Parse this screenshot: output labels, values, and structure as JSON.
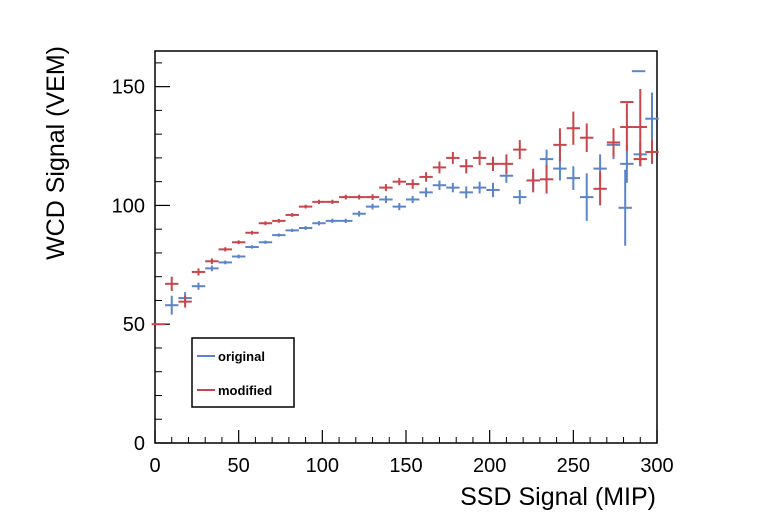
{
  "chart_data": {
    "type": "scatter",
    "xlabel": "SSD Signal (MIP)",
    "ylabel": "WCD Signal (VEM)",
    "xlim": [
      0,
      300
    ],
    "ylim": [
      0,
      165
    ],
    "xticks": [
      0,
      50,
      100,
      150,
      200,
      250,
      300
    ],
    "yticks": [
      0,
      50,
      100,
      150
    ],
    "legend_position": "bottom-left",
    "series": [
      {
        "name": "original",
        "color": "#5b85c8",
        "points": [
          {
            "x": 10,
            "y": 58,
            "yerr": 4
          },
          {
            "x": 18,
            "y": 61,
            "yerr": 2.5
          },
          {
            "x": 26,
            "y": 66,
            "yerr": 1.5
          },
          {
            "x": 34,
            "y": 73.5,
            "yerr": 1.2
          },
          {
            "x": 42,
            "y": 76,
            "yerr": 0.8
          },
          {
            "x": 50,
            "y": 78.5,
            "yerr": 0.8
          },
          {
            "x": 58,
            "y": 82.5,
            "yerr": 0.7
          },
          {
            "x": 66,
            "y": 84.5,
            "yerr": 0.7
          },
          {
            "x": 74,
            "y": 87.5,
            "yerr": 0.7
          },
          {
            "x": 82,
            "y": 89.5,
            "yerr": 0.7
          },
          {
            "x": 90,
            "y": 90.5,
            "yerr": 0.8
          },
          {
            "x": 98,
            "y": 92.5,
            "yerr": 0.9
          },
          {
            "x": 106,
            "y": 93.5,
            "yerr": 0.9
          },
          {
            "x": 114,
            "y": 93.5,
            "yerr": 0.9
          },
          {
            "x": 122,
            "y": 96.5,
            "yerr": 1.2
          },
          {
            "x": 130,
            "y": 99.5,
            "yerr": 1.2
          },
          {
            "x": 138,
            "y": 102.5,
            "yerr": 1.5
          },
          {
            "x": 146,
            "y": 99.5,
            "yerr": 1.5
          },
          {
            "x": 154,
            "y": 102.5,
            "yerr": 1.5
          },
          {
            "x": 162,
            "y": 105.5,
            "yerr": 2
          },
          {
            "x": 170,
            "y": 108.5,
            "yerr": 2
          },
          {
            "x": 178,
            "y": 107.5,
            "yerr": 2
          },
          {
            "x": 186,
            "y": 105.5,
            "yerr": 2.5
          },
          {
            "x": 194,
            "y": 107.5,
            "yerr": 2.5
          },
          {
            "x": 202,
            "y": 106.5,
            "yerr": 3
          },
          {
            "x": 210,
            "y": 112.5,
            "yerr": 3
          },
          {
            "x": 218,
            "y": 103.5,
            "yerr": 3
          },
          {
            "x": 226,
            "y": 110.5,
            "yerr": 4
          },
          {
            "x": 234,
            "y": 119.5,
            "yerr": 4
          },
          {
            "x": 242,
            "y": 115.5,
            "yerr": 5
          },
          {
            "x": 250,
            "y": 111.5,
            "yerr": 5
          },
          {
            "x": 258,
            "y": 103.5,
            "yerr": 10
          },
          {
            "x": 266,
            "y": 115.5,
            "yerr": 6
          },
          {
            "x": 274,
            "y": 125.5,
            "yerr": 6
          },
          {
            "x": 282,
            "y": 117.5,
            "yerr": 8
          },
          {
            "x": 290,
            "y": 121.5,
            "yerr": 5
          },
          {
            "x": 281,
            "y": 99,
            "yerr": 16
          },
          {
            "x": 289,
            "y": 156.5,
            "yerr": 0
          },
          {
            "x": 297,
            "y": 136.5,
            "yerr": 11
          }
        ]
      },
      {
        "name": "modified",
        "color": "#c8464b",
        "points": [
          {
            "x": 2,
            "y": 50,
            "yerr": 0
          },
          {
            "x": 10,
            "y": 67,
            "yerr": 3
          },
          {
            "x": 18,
            "y": 59.5,
            "yerr": 2.5
          },
          {
            "x": 26,
            "y": 72,
            "yerr": 1.5
          },
          {
            "x": 34,
            "y": 76.5,
            "yerr": 1.2
          },
          {
            "x": 42,
            "y": 81.5,
            "yerr": 0.9
          },
          {
            "x": 50,
            "y": 84.5,
            "yerr": 0.8
          },
          {
            "x": 58,
            "y": 88.5,
            "yerr": 0.8
          },
          {
            "x": 66,
            "y": 92.5,
            "yerr": 0.8
          },
          {
            "x": 74,
            "y": 93.5,
            "yerr": 0.8
          },
          {
            "x": 82,
            "y": 96,
            "yerr": 0.8
          },
          {
            "x": 90,
            "y": 99.5,
            "yerr": 0.8
          },
          {
            "x": 98,
            "y": 101.5,
            "yerr": 0.9
          },
          {
            "x": 106,
            "y": 101.5,
            "yerr": 0.9
          },
          {
            "x": 114,
            "y": 103.5,
            "yerr": 1
          },
          {
            "x": 122,
            "y": 103.5,
            "yerr": 1
          },
          {
            "x": 130,
            "y": 103.5,
            "yerr": 1.2
          },
          {
            "x": 138,
            "y": 107.5,
            "yerr": 1.5
          },
          {
            "x": 146,
            "y": 110,
            "yerr": 1.5
          },
          {
            "x": 154,
            "y": 109,
            "yerr": 2
          },
          {
            "x": 162,
            "y": 112,
            "yerr": 2
          },
          {
            "x": 170,
            "y": 116,
            "yerr": 2.5
          },
          {
            "x": 178,
            "y": 120,
            "yerr": 2.5
          },
          {
            "x": 186,
            "y": 116.5,
            "yerr": 3
          },
          {
            "x": 194,
            "y": 120,
            "yerr": 3
          },
          {
            "x": 202,
            "y": 117.5,
            "yerr": 3
          },
          {
            "x": 210,
            "y": 117.5,
            "yerr": 4
          },
          {
            "x": 218,
            "y": 123.5,
            "yerr": 4
          },
          {
            "x": 226,
            "y": 110.5,
            "yerr": 5
          },
          {
            "x": 234,
            "y": 111,
            "yerr": 6
          },
          {
            "x": 242,
            "y": 125.5,
            "yerr": 7
          },
          {
            "x": 250,
            "y": 132.5,
            "yerr": 7
          },
          {
            "x": 258,
            "y": 128.5,
            "yerr": 6
          },
          {
            "x": 266,
            "y": 107,
            "yerr": 7
          },
          {
            "x": 274,
            "y": 126.5,
            "yerr": 6
          },
          {
            "x": 282,
            "y": 143.5,
            "yerr": 0
          },
          {
            "x": 290,
            "y": 119.5,
            "yerr": 3
          },
          {
            "x": 282,
            "y": 133,
            "yerr": 10
          },
          {
            "x": 290,
            "y": 133,
            "yerr": 16
          },
          {
            "x": 297,
            "y": 122.5,
            "yerr": 5
          }
        ]
      }
    ]
  }
}
